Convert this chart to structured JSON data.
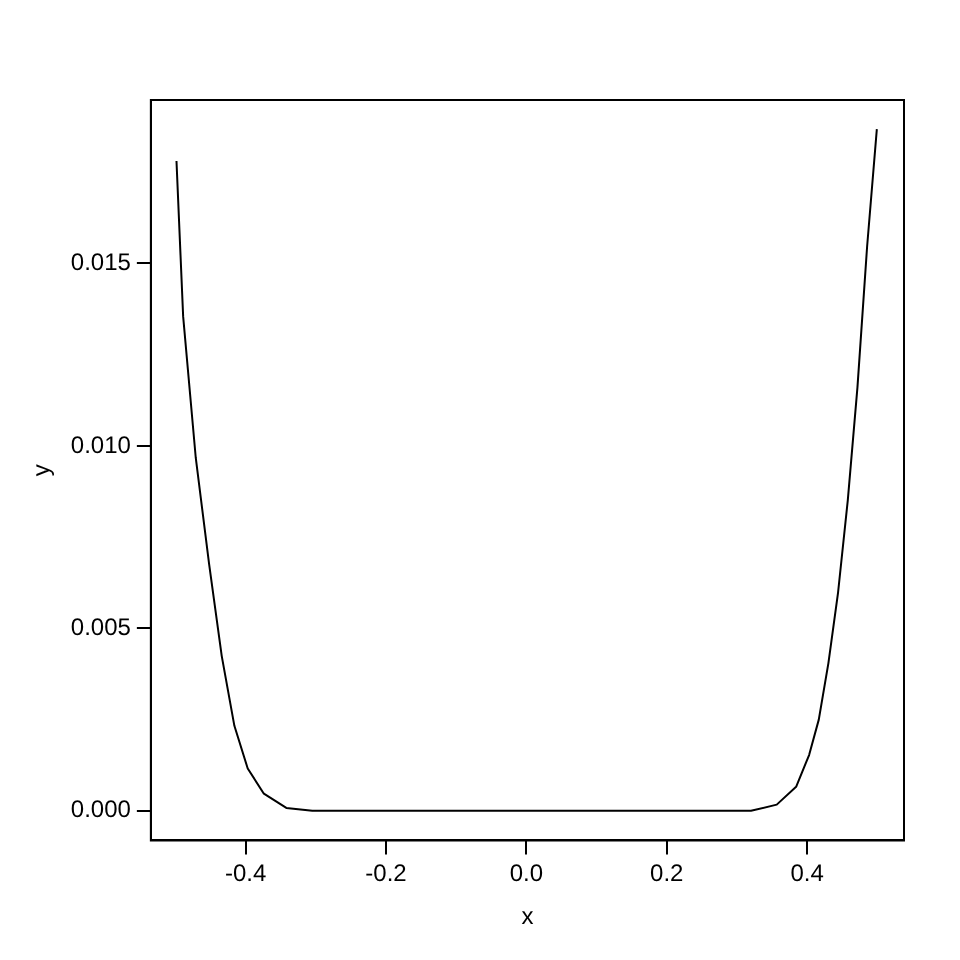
{
  "chart_data": {
    "type": "line",
    "xlabel": "x",
    "ylabel": "y",
    "grid": false,
    "legend": false,
    "marker": "none",
    "line_style": "solid",
    "xlim": [
      -0.535,
      0.538
    ],
    "ylim": [
      -0.00081,
      0.01948
    ],
    "xticks": [
      {
        "value": -0.4,
        "label": "-0.4"
      },
      {
        "value": -0.2,
        "label": "-0.2"
      },
      {
        "value": 0,
        "label": "0.0"
      },
      {
        "value": 0.2,
        "label": "0.2"
      },
      {
        "value": 0.4,
        "label": "0.4"
      }
    ],
    "yticks": [
      {
        "value": 0,
        "label": "0.000"
      },
      {
        "value": 0.005,
        "label": "0.005"
      },
      {
        "value": 0.01,
        "label": "0.010"
      },
      {
        "value": 0.015,
        "label": "0.015"
      }
    ],
    "series": [
      {
        "color": "#000000",
        "x": [
          -0.4985,
          -0.489,
          -0.471,
          -0.452,
          -0.434,
          -0.416,
          -0.397,
          -0.374,
          -0.342,
          -0.305,
          -0.2,
          0,
          0.2,
          0.32,
          0.3567,
          0.3843,
          0.4028,
          0.4166,
          0.4303,
          0.4441,
          0.4579,
          0.4717,
          0.4855,
          0.4993
        ],
        "values": [
          0.01781,
          0.01355,
          0.00967,
          0.00676,
          0.00424,
          0.00233,
          0.00116,
          0.00047,
          8e-05,
          0,
          0,
          0,
          0,
          0,
          0.00017,
          0.00066,
          0.00153,
          0.0025,
          0.00405,
          0.00599,
          0.00851,
          0.01161,
          0.01548,
          0.01868
        ]
      }
    ]
  }
}
